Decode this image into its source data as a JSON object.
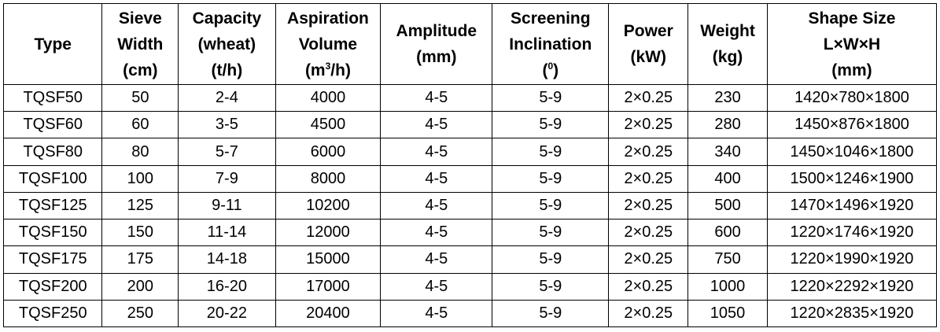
{
  "header": {
    "type": {
      "l1": "Type"
    },
    "sieve_width": {
      "l1": "Sieve",
      "l2": "Width",
      "l3": "(cm)"
    },
    "capacity": {
      "l1": "Capacity",
      "l2": "(wheat)",
      "l3": "(t/h)"
    },
    "aspiration": {
      "l1": "Aspiration",
      "l2": "Volume",
      "l3_pre": "(m",
      "l3_sup": "3",
      "l3_post": "/h)"
    },
    "amplitude": {
      "l1": "Amplitude",
      "l2": "(mm)"
    },
    "inclination": {
      "l1": "Screening",
      "l2": "Inclination",
      "l3_pre": "(",
      "l3_sup": "0",
      "l3_post": ")"
    },
    "power": {
      "l1": "Power",
      "l2": "(kW)"
    },
    "weight": {
      "l1": "Weight",
      "l2": "(kg)"
    },
    "shape": {
      "l1": "Shape Size",
      "l2": "L×W×H",
      "l3": "(mm)"
    }
  },
  "rows": [
    {
      "type": "TQSF50",
      "width": "50",
      "capacity": "2-4",
      "aspiration": "4000",
      "amplitude": "4-5",
      "inclination": "5-9",
      "power": "2×0.25",
      "weight": "230",
      "size": "1420×780×1800"
    },
    {
      "type": "TQSF60",
      "width": "60",
      "capacity": "3-5",
      "aspiration": "4500",
      "amplitude": "4-5",
      "inclination": "5-9",
      "power": "2×0.25",
      "weight": "280",
      "size": "1450×876×1800"
    },
    {
      "type": "TQSF80",
      "width": "80",
      "capacity": "5-7",
      "aspiration": "6000",
      "amplitude": "4-5",
      "inclination": "5-9",
      "power": "2×0.25",
      "weight": "340",
      "size": "1450×1046×1800"
    },
    {
      "type": "TQSF100",
      "width": "100",
      "capacity": "7-9",
      "aspiration": "8000",
      "amplitude": "4-5",
      "inclination": "5-9",
      "power": "2×0.25",
      "weight": "400",
      "size": "1500×1246×1900"
    },
    {
      "type": "TQSF125",
      "width": "125",
      "capacity": "9-11",
      "aspiration": "10200",
      "amplitude": "4-5",
      "inclination": "5-9",
      "power": "2×0.25",
      "weight": "500",
      "size": "1470×1496×1920"
    },
    {
      "type": "TQSF150",
      "width": "150",
      "capacity": "11-14",
      "aspiration": "12000",
      "amplitude": "4-5",
      "inclination": "5-9",
      "power": "2×0.25",
      "weight": "600",
      "size": "1220×1746×1920"
    },
    {
      "type": "TQSF175",
      "width": "175",
      "capacity": "14-18",
      "aspiration": "15000",
      "amplitude": "4-5",
      "inclination": "5-9",
      "power": "2×0.25",
      "weight": "750",
      "size": "1220×1990×1920"
    },
    {
      "type": "TQSF200",
      "width": "200",
      "capacity": "16-20",
      "aspiration": "17000",
      "amplitude": "4-5",
      "inclination": "5-9",
      "power": "2×0.25",
      "weight": "1000",
      "size": "1220×2292×1920"
    },
    {
      "type": "TQSF250",
      "width": "250",
      "capacity": "20-22",
      "aspiration": "20400",
      "amplitude": "4-5",
      "inclination": "5-9",
      "power": "2×0.25",
      "weight": "1050",
      "size": "1220×2835×1920"
    }
  ]
}
